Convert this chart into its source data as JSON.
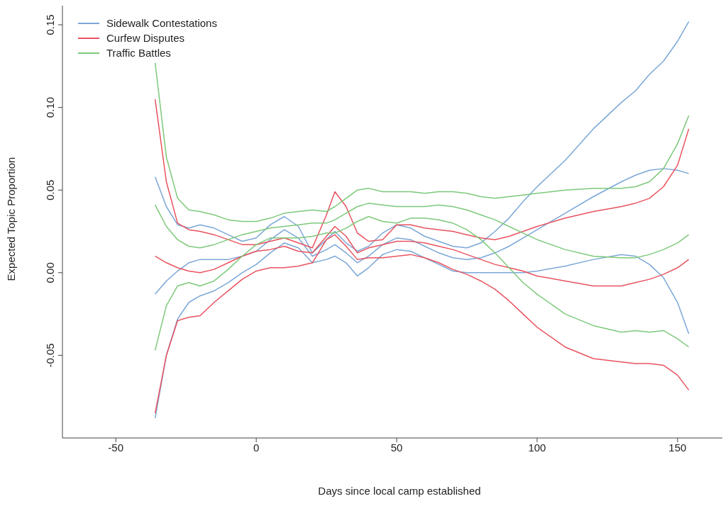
{
  "chart_data": {
    "type": "line",
    "xlabel": "Days since local camp established",
    "ylabel": "Expected Topic Proportion",
    "x": [
      -36,
      -32,
      -28,
      -24,
      -20,
      -15,
      -10,
      -5,
      0,
      5,
      10,
      15,
      20,
      25,
      28,
      32,
      36,
      40,
      45,
      50,
      55,
      60,
      65,
      70,
      75,
      80,
      85,
      90,
      95,
      100,
      110,
      120,
      130,
      135,
      140,
      145,
      150,
      154
    ],
    "xlim": [
      -69,
      171
    ],
    "xticks": [
      -50,
      0,
      50,
      100,
      150
    ],
    "ylim": [
      -0.1,
      0.165
    ],
    "yticks": [
      {
        "value": -0.05,
        "label": "-0.05"
      },
      {
        "value": 0,
        "label": "0.00"
      },
      {
        "value": 0.05,
        "label": "0.05"
      },
      {
        "value": 0.1,
        "label": "0.10"
      },
      {
        "value": 0.15,
        "label": "0.15"
      }
    ],
    "legend": "top left",
    "line_style": "solid",
    "series": [
      {
        "name": "Sidewalk Contestations",
        "color": "#7ba7d7",
        "values": [
          -0.013,
          -0.005,
          0.001,
          0.006,
          0.008,
          0.008,
          0.008,
          0.01,
          0.013,
          0.02,
          0.026,
          0.021,
          0.01,
          0.014,
          0.017,
          0.012,
          0.006,
          0.01,
          0.017,
          0.021,
          0.02,
          0.016,
          0.012,
          0.009,
          0.008,
          0.009,
          0.012,
          0.016,
          0.021,
          0.026,
          0.036,
          0.046,
          0.055,
          0.059,
          0.062,
          0.063,
          0.062,
          0.06
        ]
      },
      {
        "color": "#7ba7d7",
        "values": [
          -0.088,
          -0.05,
          -0.028,
          -0.018,
          -0.014,
          -0.011,
          -0.006,
          0.0,
          0.005,
          0.012,
          0.018,
          0.015,
          0.006,
          0.008,
          0.01,
          0.006,
          -0.002,
          0.003,
          0.011,
          0.014,
          0.013,
          0.009,
          0.005,
          0.001,
          0.0,
          0.0,
          0.0,
          0.0,
          0.0,
          0.001,
          0.004,
          0.008,
          0.011,
          0.01,
          0.005,
          -0.003,
          -0.018,
          -0.037
        ]
      },
      {
        "color": "#7ba7d7",
        "values": [
          0.058,
          0.04,
          0.029,
          0.027,
          0.029,
          0.027,
          0.023,
          0.019,
          0.021,
          0.029,
          0.034,
          0.028,
          0.012,
          0.02,
          0.025,
          0.018,
          0.013,
          0.016,
          0.024,
          0.029,
          0.027,
          0.022,
          0.019,
          0.016,
          0.015,
          0.018,
          0.025,
          0.033,
          0.043,
          0.052,
          0.068,
          0.087,
          0.103,
          0.11,
          0.12,
          0.128,
          0.14,
          0.152
        ]
      },
      {
        "name": "Curfew Disputes",
        "color": "#e8535f",
        "values": [
          0.01,
          0.006,
          0.003,
          0.001,
          0.0,
          0.002,
          0.006,
          0.01,
          0.013,
          0.014,
          0.016,
          0.013,
          0.012,
          0.022,
          0.028,
          0.022,
          0.012,
          0.015,
          0.017,
          0.019,
          0.019,
          0.018,
          0.016,
          0.014,
          0.011,
          0.008,
          0.005,
          0.003,
          0.001,
          -0.002,
          -0.005,
          -0.008,
          -0.008,
          -0.006,
          -0.004,
          -0.001,
          0.003,
          0.008
        ]
      },
      {
        "color": "#e8535f",
        "values": [
          -0.085,
          -0.05,
          -0.029,
          -0.027,
          -0.026,
          -0.018,
          -0.011,
          -0.004,
          0.001,
          0.003,
          0.003,
          0.004,
          0.006,
          0.02,
          0.023,
          0.016,
          0.008,
          0.009,
          0.009,
          0.01,
          0.011,
          0.009,
          0.006,
          0.002,
          -0.001,
          -0.005,
          -0.01,
          -0.017,
          -0.025,
          -0.033,
          -0.045,
          -0.052,
          -0.054,
          -0.055,
          -0.055,
          -0.056,
          -0.062,
          -0.071
        ]
      },
      {
        "color": "#e8535f",
        "values": [
          0.105,
          0.055,
          0.03,
          0.026,
          0.025,
          0.023,
          0.02,
          0.017,
          0.017,
          0.019,
          0.021,
          0.018,
          0.015,
          0.035,
          0.049,
          0.04,
          0.024,
          0.019,
          0.02,
          0.029,
          0.029,
          0.027,
          0.026,
          0.025,
          0.023,
          0.021,
          0.02,
          0.022,
          0.025,
          0.028,
          0.033,
          0.037,
          0.04,
          0.042,
          0.045,
          0.052,
          0.065,
          0.087
        ]
      },
      {
        "name": "Traffic Battles",
        "color": "#7dc97a",
        "values": [
          0.041,
          0.028,
          0.02,
          0.016,
          0.015,
          0.017,
          0.02,
          0.023,
          0.025,
          0.027,
          0.028,
          0.029,
          0.03,
          0.03,
          0.032,
          0.036,
          0.04,
          0.042,
          0.041,
          0.04,
          0.04,
          0.04,
          0.041,
          0.04,
          0.038,
          0.035,
          0.032,
          0.028,
          0.024,
          0.02,
          0.014,
          0.01,
          0.009,
          0.009,
          0.011,
          0.014,
          0.018,
          0.023
        ]
      },
      {
        "color": "#7dc97a",
        "values": [
          -0.047,
          -0.02,
          -0.008,
          -0.006,
          -0.008,
          -0.005,
          0.002,
          0.01,
          0.017,
          0.021,
          0.021,
          0.021,
          0.022,
          0.024,
          0.024,
          0.027,
          0.031,
          0.034,
          0.031,
          0.03,
          0.033,
          0.033,
          0.032,
          0.03,
          0.026,
          0.02,
          0.012,
          0.003,
          -0.006,
          -0.013,
          -0.025,
          -0.032,
          -0.036,
          -0.035,
          -0.036,
          -0.035,
          -0.04,
          -0.045
        ]
      },
      {
        "color": "#7dc97a",
        "values": [
          0.127,
          0.07,
          0.045,
          0.038,
          0.037,
          0.035,
          0.032,
          0.031,
          0.031,
          0.033,
          0.036,
          0.037,
          0.038,
          0.037,
          0.04,
          0.045,
          0.05,
          0.051,
          0.049,
          0.049,
          0.049,
          0.048,
          0.049,
          0.049,
          0.048,
          0.046,
          0.045,
          0.046,
          0.047,
          0.048,
          0.05,
          0.051,
          0.051,
          0.052,
          0.055,
          0.063,
          0.078,
          0.095
        ]
      }
    ]
  }
}
